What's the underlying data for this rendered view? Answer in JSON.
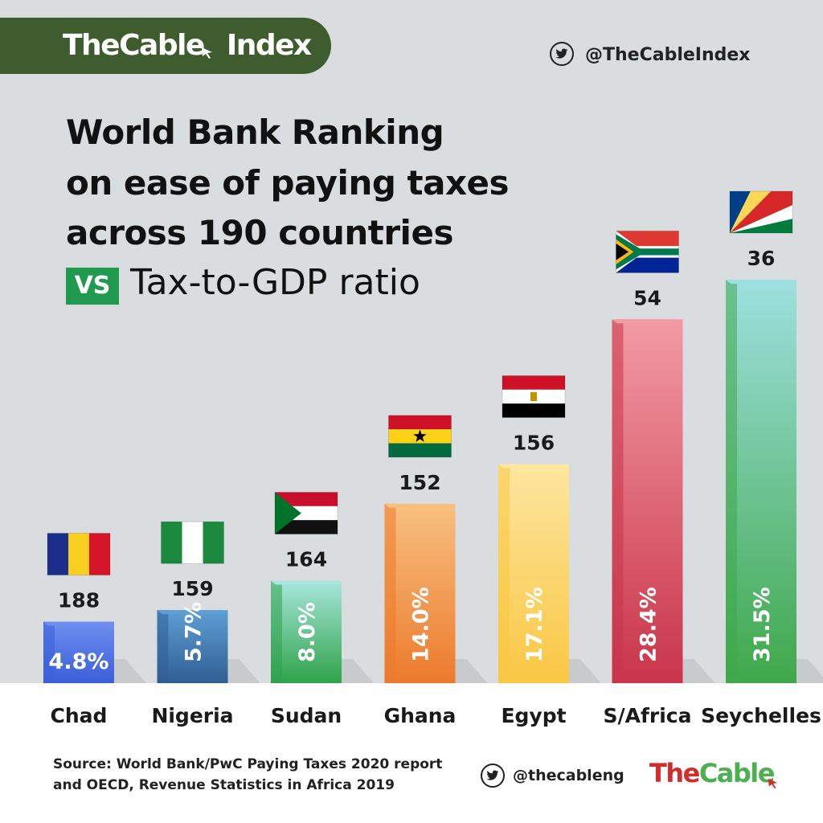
{
  "header": {
    "brand": "TheCable",
    "brand_suffix": "Index",
    "twitter_handle": "@TheCableIndex"
  },
  "title": {
    "line1": "World Bank Ranking",
    "line2": "on ease of paying taxes",
    "line3": "across 190 countries",
    "vs": "VS",
    "line4": "Tax-to-GDP ratio"
  },
  "chart_data": {
    "type": "bar",
    "categories": [
      "Chad",
      "Nigeria",
      "Sudan",
      "Ghana",
      "Egypt",
      "S/Africa",
      "Seychelles"
    ],
    "series": [
      {
        "name": "Tax-to-GDP ratio",
        "values": [
          4.8,
          5.7,
          8.0,
          14.0,
          17.1,
          28.4,
          31.5
        ],
        "labels": [
          "4.8%",
          "5.7%",
          "8.0%",
          "14.0%",
          "17.1%",
          "28.4%",
          "31.5%"
        ]
      },
      {
        "name": "World Bank Ranking on ease of paying taxes",
        "values": [
          188,
          159,
          164,
          152,
          156,
          54,
          36
        ]
      }
    ],
    "flags": [
      "chad",
      "nigeria",
      "sudan",
      "ghana",
      "egypt",
      "south-africa",
      "seychelles"
    ],
    "bar_colors": [
      {
        "light": "#6f8ef0",
        "dark": "#3a5fd8"
      },
      {
        "light": "#5e9fd3",
        "dark": "#2f5e94"
      },
      {
        "light": "#a8e6dc",
        "dark": "#2fa34a"
      },
      {
        "light": "#f8c080",
        "dark": "#ec7a2c"
      },
      {
        "light": "#fde6a0",
        "dark": "#f9c743"
      },
      {
        "light": "#f29aa3",
        "dark": "#c9354a"
      },
      {
        "light": "#9ee0e0",
        "dark": "#3fa84a"
      }
    ],
    "ylim": [
      0,
      32
    ]
  },
  "footer": {
    "source_line1": "Source: World Bank/PwC Paying Taxes 2020 report",
    "source_line2": "and OECD, Revenue Statistics in Africa 2019",
    "twitter_handle": "@thecableng",
    "logo_red": "The",
    "logo_green": "Cable"
  },
  "colors": {
    "banner": "#3f5c2e",
    "background": "#d9dde0",
    "vs_box": "#1f9a4e",
    "logo_red": "#d62b2b",
    "logo_green": "#4caf50"
  }
}
